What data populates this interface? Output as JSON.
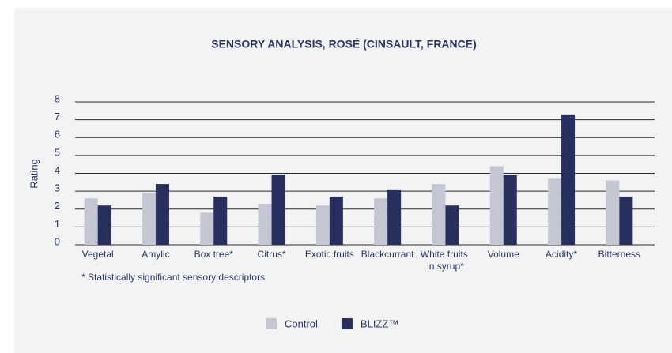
{
  "chart_data": {
    "type": "bar",
    "title": "SENSORY ANALYSIS, ROSÉ (CINSAULT, FRANCE)",
    "y_label": "Rating",
    "categories": [
      "Vegetal",
      "Amylic",
      "Box tree*",
      "Citrus*",
      "Exotic fruits",
      "Blackcurrant",
      "White fruits in syrup*",
      "Volume",
      "Acidity*",
      "Bitterness"
    ],
    "series": [
      {
        "name": "Control",
        "color": "#c4c6d4",
        "values": [
          2.6,
          2.9,
          1.8,
          2.3,
          2.2,
          2.6,
          3.4,
          4.4,
          3.7,
          3.6
        ]
      },
      {
        "name": "BLIZZ™",
        "color": "#262f5e",
        "values": [
          2.2,
          3.4,
          2.7,
          3.9,
          2.7,
          3.1,
          2.2,
          3.9,
          7.3,
          2.7
        ]
      }
    ],
    "ylim": [
      0,
      8
    ],
    "yticks": [
      0,
      1,
      2,
      3,
      4,
      5,
      6,
      7,
      8
    ],
    "grid": true,
    "legend": "bottom",
    "footnote": "* Statistically significant sensory descriptors"
  }
}
